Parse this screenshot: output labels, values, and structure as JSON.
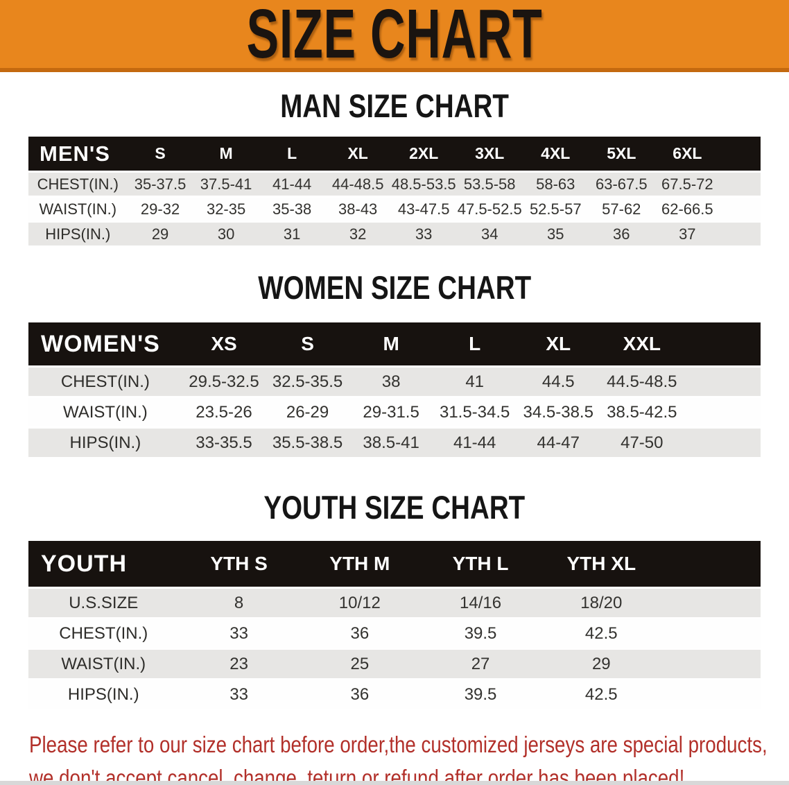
{
  "banner": {
    "title": "SIZE CHART",
    "bg_color": "#E8861D",
    "edge_color": "#C4690F"
  },
  "colors": {
    "header_bar": "#17120F",
    "stripe_gray": "#E7E6E4",
    "stripe_white": "#FEFEFE",
    "disclaimer_red": "#B2302A"
  },
  "sections": [
    {
      "id": "men",
      "heading": "MAN SIZE CHART",
      "corner_label": "MEN'S",
      "columns": [
        "S",
        "M",
        "L",
        "XL",
        "2XL",
        "3XL",
        "4XL",
        "5XL",
        "6XL"
      ],
      "rows": [
        {
          "label": "CHEST(IN.)",
          "values": [
            "35-37.5",
            "37.5-41",
            "41-44",
            "44-48.5",
            "48.5-53.5",
            "53.5-58",
            "58-63",
            "63-67.5",
            "67.5-72"
          ]
        },
        {
          "label": "WAIST(IN.)",
          "values": [
            "29-32",
            "32-35",
            "35-38",
            "38-43",
            "43-47.5",
            "47.5-52.5",
            "52.5-57",
            "57-62",
            "62-66.5"
          ]
        },
        {
          "label": "HIPS(IN.)",
          "values": [
            "29",
            "30",
            "31",
            "32",
            "33",
            "34",
            "35",
            "36",
            "37"
          ]
        }
      ]
    },
    {
      "id": "women",
      "heading": "WOMEN SIZE CHART",
      "corner_label": "WOMEN'S",
      "columns": [
        "XS",
        "S",
        "M",
        "L",
        "XL",
        "XXL"
      ],
      "rows": [
        {
          "label": "CHEST(IN.)",
          "values": [
            "29.5-32.5",
            "32.5-35.5",
            "38",
            "41",
            "44.5",
            "44.5-48.5"
          ]
        },
        {
          "label": "WAIST(IN.)",
          "values": [
            "23.5-26",
            "26-29",
            "29-31.5",
            "31.5-34.5",
            "34.5-38.5",
            "38.5-42.5"
          ]
        },
        {
          "label": "HIPS(IN.)",
          "values": [
            "33-35.5",
            "35.5-38.5",
            "38.5-41",
            "41-44",
            "44-47",
            "47-50"
          ]
        }
      ]
    },
    {
      "id": "youth",
      "heading": "YOUTH SIZE CHART",
      "corner_label": "YOUTH",
      "columns": [
        "YTH S",
        "YTH M",
        "YTH L",
        "YTH XL"
      ],
      "rows": [
        {
          "label": "U.S.SIZE",
          "values": [
            "8",
            "10/12",
            "14/16",
            "18/20"
          ]
        },
        {
          "label": "CHEST(IN.)",
          "values": [
            "33",
            "36",
            "39.5",
            "42.5"
          ]
        },
        {
          "label": "WAIST(IN.)",
          "values": [
            "23",
            "25",
            "27",
            "29"
          ]
        },
        {
          "label": "HIPS(IN.)",
          "values": [
            "33",
            "36",
            "39.5",
            "42.5"
          ]
        }
      ]
    }
  ],
  "disclaimer": {
    "lines": [
      "Please refer to our size chart before order,the customized jerseys are special products,",
      "we don't accept cancel, change, teturn or refund after order has been placed!"
    ]
  }
}
